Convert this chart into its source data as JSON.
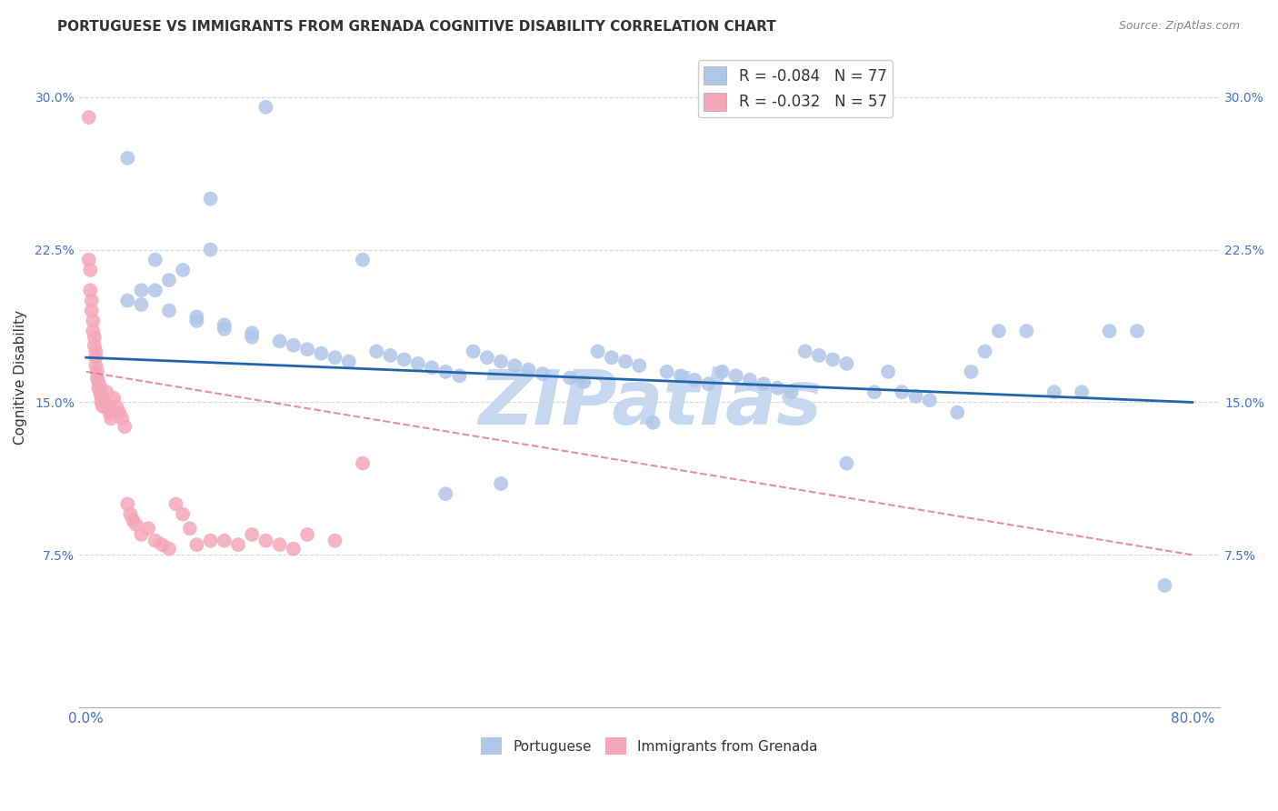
{
  "title": "PORTUGUESE VS IMMIGRANTS FROM GRENADA COGNITIVE DISABILITY CORRELATION CHART",
  "source": "Source: ZipAtlas.com",
  "ylabel": "Cognitive Disability",
  "ytick_labels": [
    "7.5%",
    "15.0%",
    "22.5%",
    "30.0%"
  ],
  "ytick_values": [
    0.075,
    0.15,
    0.225,
    0.3
  ],
  "xlim": [
    -0.005,
    0.82
  ],
  "ylim": [
    0.0,
    0.325
  ],
  "blue_scatter_color": "#aec6e8",
  "pink_scatter_color": "#f4a7b9",
  "blue_line_color": "#2166ac",
  "pink_line_color": "#e07090",
  "watermark_color": "#c5d8ef",
  "background_color": "#ffffff",
  "grid_color": "#cccccc",
  "legend_blue_label": "R = -0.084   N = 77",
  "legend_pink_label": "R = -0.032   N = 57",
  "bottom_label_blue": "Portuguese",
  "bottom_label_pink": "Immigrants from Grenada",
  "portuguese_x": [
    0.13,
    0.03,
    0.09,
    0.09,
    0.05,
    0.07,
    0.06,
    0.05,
    0.04,
    0.03,
    0.04,
    0.06,
    0.08,
    0.08,
    0.1,
    0.1,
    0.12,
    0.12,
    0.14,
    0.15,
    0.16,
    0.17,
    0.18,
    0.19,
    0.21,
    0.22,
    0.23,
    0.24,
    0.25,
    0.26,
    0.27,
    0.28,
    0.29,
    0.3,
    0.31,
    0.32,
    0.33,
    0.35,
    0.36,
    0.37,
    0.38,
    0.39,
    0.4,
    0.41,
    0.42,
    0.43,
    0.44,
    0.45,
    0.46,
    0.47,
    0.48,
    0.49,
    0.5,
    0.51,
    0.52,
    0.53,
    0.54,
    0.55,
    0.57,
    0.58,
    0.59,
    0.6,
    0.61,
    0.63,
    0.64,
    0.65,
    0.66,
    0.68,
    0.7,
    0.72,
    0.74,
    0.76,
    0.78,
    0.2,
    0.55,
    0.3,
    0.26
  ],
  "portuguese_y": [
    0.295,
    0.27,
    0.25,
    0.225,
    0.22,
    0.215,
    0.21,
    0.205,
    0.205,
    0.2,
    0.198,
    0.195,
    0.192,
    0.19,
    0.188,
    0.186,
    0.184,
    0.182,
    0.18,
    0.178,
    0.176,
    0.174,
    0.172,
    0.17,
    0.175,
    0.173,
    0.171,
    0.169,
    0.167,
    0.165,
    0.163,
    0.175,
    0.172,
    0.17,
    0.168,
    0.166,
    0.164,
    0.162,
    0.16,
    0.175,
    0.172,
    0.17,
    0.168,
    0.14,
    0.165,
    0.163,
    0.161,
    0.159,
    0.165,
    0.163,
    0.161,
    0.159,
    0.157,
    0.155,
    0.175,
    0.173,
    0.171,
    0.169,
    0.155,
    0.165,
    0.155,
    0.153,
    0.151,
    0.145,
    0.165,
    0.175,
    0.185,
    0.185,
    0.155,
    0.155,
    0.185,
    0.185,
    0.06,
    0.22,
    0.12,
    0.11,
    0.105
  ],
  "grenada_x": [
    0.002,
    0.002,
    0.003,
    0.003,
    0.004,
    0.004,
    0.005,
    0.005,
    0.006,
    0.006,
    0.007,
    0.007,
    0.007,
    0.008,
    0.008,
    0.009,
    0.009,
    0.01,
    0.01,
    0.011,
    0.011,
    0.012,
    0.012,
    0.013,
    0.014,
    0.015,
    0.016,
    0.017,
    0.018,
    0.02,
    0.022,
    0.024,
    0.026,
    0.028,
    0.03,
    0.032,
    0.034,
    0.036,
    0.04,
    0.045,
    0.05,
    0.055,
    0.06,
    0.065,
    0.07,
    0.075,
    0.08,
    0.09,
    0.1,
    0.11,
    0.12,
    0.13,
    0.14,
    0.15,
    0.16,
    0.18,
    0.2
  ],
  "grenada_y": [
    0.29,
    0.22,
    0.215,
    0.205,
    0.2,
    0.195,
    0.19,
    0.185,
    0.182,
    0.178,
    0.175,
    0.172,
    0.168,
    0.165,
    0.162,
    0.16,
    0.157,
    0.158,
    0.155,
    0.153,
    0.15,
    0.152,
    0.148,
    0.15,
    0.148,
    0.155,
    0.148,
    0.145,
    0.142,
    0.152,
    0.148,
    0.145,
    0.142,
    0.138,
    0.1,
    0.095,
    0.092,
    0.09,
    0.085,
    0.088,
    0.082,
    0.08,
    0.078,
    0.1,
    0.095,
    0.088,
    0.08,
    0.082,
    0.082,
    0.08,
    0.085,
    0.082,
    0.08,
    0.078,
    0.085,
    0.082,
    0.12
  ]
}
